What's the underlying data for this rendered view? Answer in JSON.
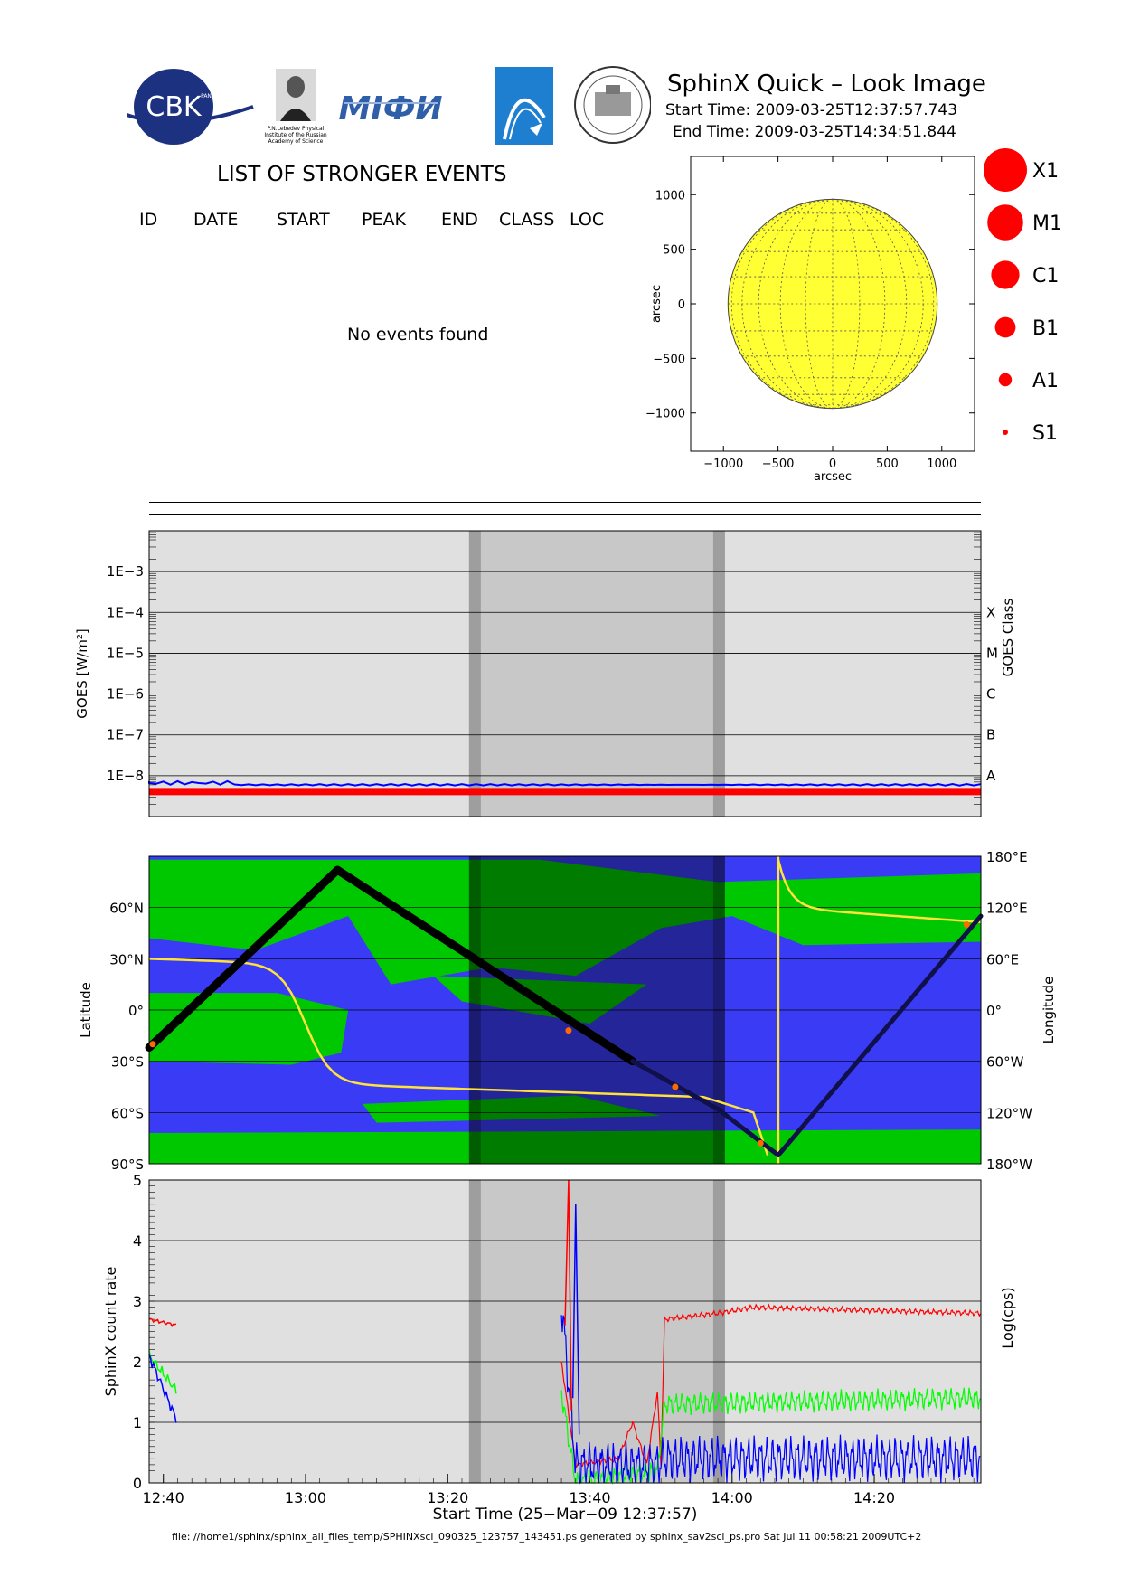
{
  "header": {
    "title": "SphinX Quick – Look Image",
    "start_time": "Start Time: 2009-03-25T12:37:57.743",
    "end_time": "End Time: 2009-03-25T14:34:51.844"
  },
  "logos": {
    "cbk": "CBK",
    "cbk_ring": "PAN",
    "lebedev_caption": [
      "P.N.Lebedev Physical",
      "Institute of the Russian",
      "Academy of Science"
    ],
    "mifi": "MIФИ"
  },
  "events": {
    "title": "LIST OF STRONGER EVENTS",
    "columns": [
      "ID",
      "DATE",
      "START",
      "PEAK",
      "END",
      "CLASS",
      "LOC"
    ],
    "message": "No events found"
  },
  "colors": {
    "quiet_grey": "#e0e0e0",
    "eclipse_grey": "#c8c8c8",
    "eclipse_border": "#9e9e9e",
    "sun": "#ffff33",
    "map_ocean": "#3a3cf5",
    "map_land": "#00c800",
    "goes_red": "#ff0000",
    "goes_blue": "#0000ff",
    "track": "#000000",
    "orbit_yellow": "#ffe23a"
  },
  "chart_data": [
    {
      "type": "scatter",
      "name": "solar-disk",
      "xlabel": "arcsec",
      "ylabel": "arcsec",
      "xlim": [
        -1300,
        1300
      ],
      "ylim": [
        -1350,
        1350
      ],
      "xticks": [
        -1000,
        -500,
        0,
        500,
        1000
      ],
      "yticks": [
        -1000,
        -500,
        0,
        500,
        1000
      ],
      "x_tick_labels": [
        "−1000",
        "−500",
        "0",
        "500",
        "1000"
      ],
      "y_tick_labels": [
        "−1000",
        "−500",
        "0",
        "500",
        "1000"
      ],
      "solar_radius_arcsec": 958,
      "grid": true
    },
    {
      "type": "legend",
      "name": "class-scale",
      "entries": [
        {
          "label": "X1",
          "size": 5
        },
        {
          "label": "M1",
          "size": 4
        },
        {
          "label": "C1",
          "size": 3
        },
        {
          "label": "B1",
          "size": 2
        },
        {
          "label": "A1",
          "size": 1
        },
        {
          "label": "S1",
          "size": 0
        }
      ]
    },
    {
      "type": "line",
      "name": "goes-flux",
      "ylabel": "GOES [W/m²]",
      "y2label": "GOES Class",
      "yscale": "log",
      "ylim": [
        1e-09,
        0.01
      ],
      "y_ticks": [
        1e-08,
        1e-07,
        1e-06,
        1e-05,
        0.0001,
        0.001
      ],
      "y_tick_labels": [
        "1E−8",
        "1E−7",
        "1E−6",
        "1E−5",
        "1E−4",
        "1E−3"
      ],
      "classes": [
        {
          "label": "A",
          "value": 1e-08
        },
        {
          "label": "B",
          "value": 1e-07
        },
        {
          "label": "C",
          "value": 1e-06
        },
        {
          "label": "M",
          "value": 1e-05
        },
        {
          "label": "X",
          "value": 0.0001
        }
      ],
      "xlim_min": [
        0,
        117
      ],
      "eclipse_min": [
        45,
        81
      ],
      "series": [
        {
          "name": "",
          "color": "#0000ff",
          "level": 6e-09
        },
        {
          "name": "",
          "color": "#ff0000",
          "level": 4e-09
        }
      ]
    },
    {
      "type": "map",
      "name": "orbit-map",
      "ylabel": "Latitude",
      "y2label": "Longitude",
      "lat_ticks": [
        "90°S",
        "60°S",
        "30°S",
        "0°",
        "30°N",
        "60°N"
      ],
      "lat_values": [
        -90,
        -60,
        -30,
        0,
        30,
        60
      ],
      "lon_ticks": [
        "180°W",
        "120°W",
        "60°W",
        "0°",
        "60°E",
        "120°E",
        "180°E"
      ],
      "lon_values": [
        -180,
        -120,
        -60,
        0,
        60,
        120,
        180
      ],
      "track": [
        {
          "t": 0,
          "lat": -22
        },
        {
          "t": 26.5,
          "lat": 82
        },
        {
          "t": 68,
          "lat": -30
        },
        {
          "t": 80,
          "lat": -58
        },
        {
          "t": 88.5,
          "lat": -85
        },
        {
          "t": 117,
          "lat": 55
        }
      ]
    },
    {
      "type": "line",
      "name": "sphinx-count-rate",
      "ylabel": "SphinX count rate",
      "y2label": "Log(cps)",
      "xlabel": "Start Time (25−Mar−09 12:37:57)",
      "ylim": [
        0,
        5
      ],
      "y_ticks": [
        0,
        1,
        2,
        3,
        4,
        5
      ],
      "x_tick_min": [
        2,
        22,
        42,
        62,
        82,
        102
      ],
      "x_tick_labels": [
        "12:40",
        "13:00",
        "13:20",
        "13:40",
        "14:00",
        "14:20"
      ],
      "series": [
        {
          "name": "",
          "color": "#ff0000",
          "points": [
            [
              0,
              2.7
            ],
            [
              4,
              2.6
            ],
            [
              58,
              2.0
            ],
            [
              60,
              0.3
            ],
            [
              66,
              0.4
            ],
            [
              68,
              1.0
            ],
            [
              70,
              0.3
            ],
            [
              71.5,
              1.5
            ],
            [
              72,
              0.3
            ],
            [
              72.5,
              2.7
            ],
            [
              80,
              2.8
            ],
            [
              85,
              2.9
            ],
            [
              117,
              2.8
            ]
          ]
        },
        {
          "name": "",
          "color": "#00ff00",
          "points": [
            [
              0,
              2.1
            ],
            [
              4,
              1.5
            ],
            [
              58,
              1.5
            ],
            [
              60,
              0.0
            ],
            [
              71.5,
              0.2
            ],
            [
              72.5,
              1.3
            ],
            [
              117,
              1.4
            ]
          ]
        },
        {
          "name": "",
          "color": "#0000ff",
          "points": [
            [
              0,
              2.1
            ],
            [
              4,
              1.0
            ],
            [
              58,
              3.0
            ],
            [
              60,
              0.3
            ],
            [
              71.5,
              0.3
            ],
            [
              72.5,
              0.4
            ],
            [
              117,
              0.4
            ]
          ]
        }
      ]
    }
  ],
  "footer": "file: //home1/sphinx/sphinx_all_files_temp/SPHINXsci_090325_123757_143451.ps generated by sphinx_sav2sci_ps.pro Sat Jul 11 00:58:21 2009UTC+2"
}
